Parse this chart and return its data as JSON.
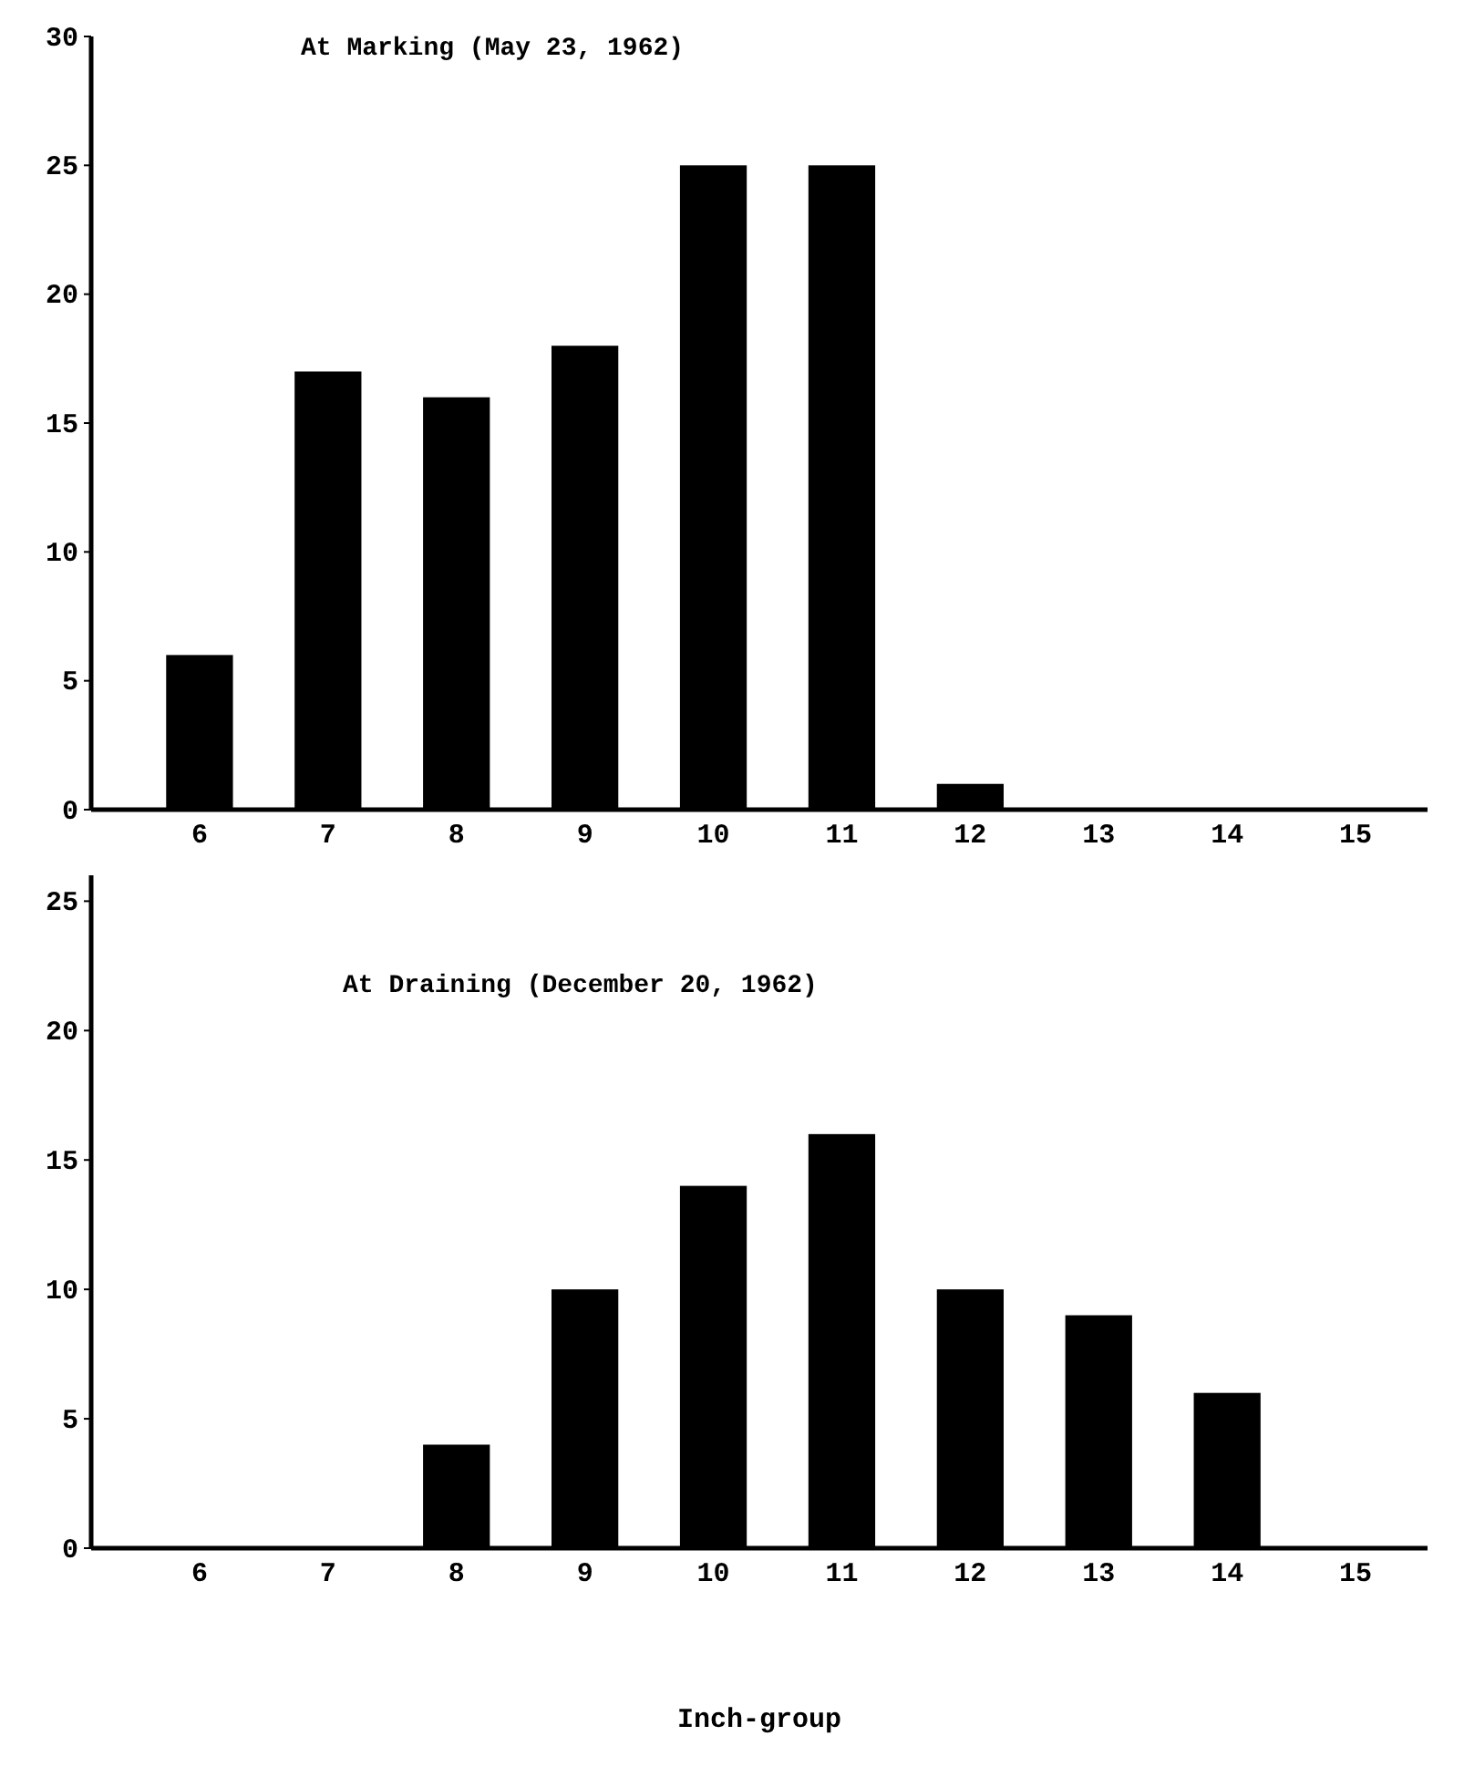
{
  "chart_data": [
    {
      "type": "bar",
      "title": "At Marking (May 23, 1962)",
      "categories": [
        "6",
        "7",
        "8",
        "9",
        "10",
        "11",
        "12",
        "13",
        "14",
        "15"
      ],
      "values": [
        6,
        17,
        16,
        18,
        25,
        25,
        1,
        0,
        0,
        0
      ],
      "color": "#000000",
      "ylim": [
        0,
        30
      ],
      "yticks": [
        0,
        5,
        10,
        15,
        20,
        25,
        30
      ]
    },
    {
      "type": "bar",
      "title": "At Draining (December 20, 1962)",
      "xlabel": "Inch-group",
      "categories": [
        "6",
        "7",
        "8",
        "9",
        "10",
        "11",
        "12",
        "13",
        "14",
        "15"
      ],
      "values": [
        0,
        0,
        4,
        10,
        14,
        16,
        10,
        9,
        6,
        0
      ],
      "color": "#000000",
      "ylim": [
        0,
        26
      ],
      "yticks": [
        0,
        5,
        10,
        15,
        20,
        25
      ]
    }
  ]
}
